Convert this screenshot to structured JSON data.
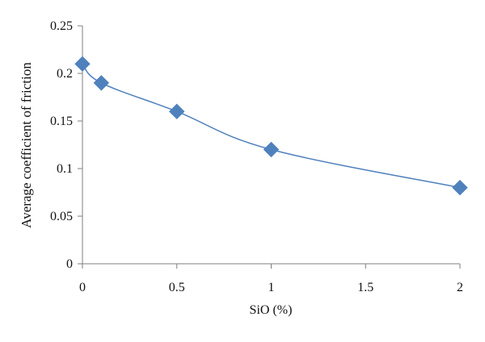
{
  "chart_data": {
    "type": "line",
    "title": "",
    "xlabel": "SiO (%)",
    "ylabel": "Average coefficient of friction",
    "xlim": [
      0,
      2
    ],
    "ylim": [
      0,
      0.25
    ],
    "x_ticks": [
      "0",
      "0.5",
      "1",
      "1.5",
      "2"
    ],
    "y_ticks": [
      "0",
      "0.05",
      "0.1",
      "0.15",
      "0.2",
      "0.25"
    ],
    "grid": false,
    "legend": "none",
    "series": [
      {
        "x": [
          0,
          0.1,
          0.5,
          1,
          2
        ],
        "y": [
          0.21,
          0.19,
          0.16,
          0.12,
          0.08
        ],
        "line_color": "#4F81BD",
        "marker": "diamond",
        "marker_color": "#4F81BD"
      }
    ]
  }
}
